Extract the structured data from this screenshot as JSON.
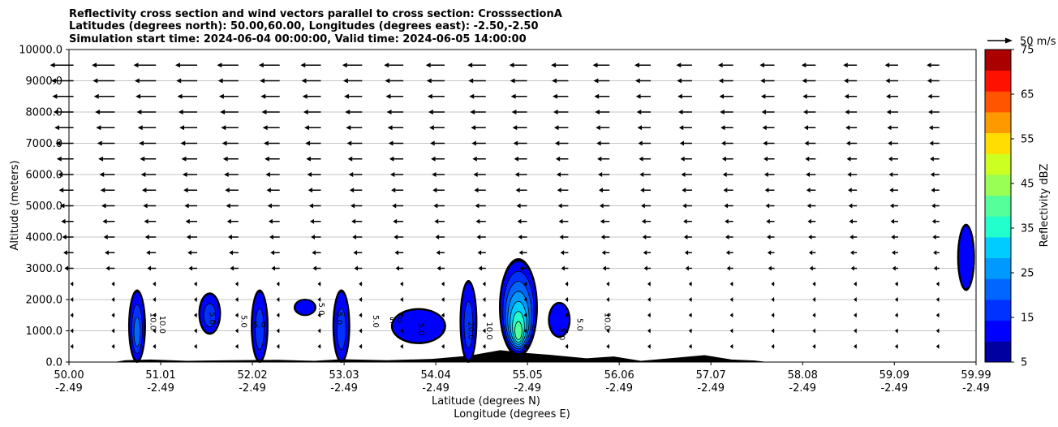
{
  "chart_data": {
    "type": "contour",
    "title_lines": [
      "Reflectivity cross section and wind vectors parallel to cross section: CrosssectionA",
      "Latitudes (degrees north): 50.00,60.00, Longitudes (degrees east): -2.50,-2.50",
      "Simulation start time: 2024-06-04 00:00:00, Valid time: 2024-06-05 14:00:00"
    ],
    "xlabel_lat": "Latitude (degrees N)",
    "xlabel_lon": "Longitude (degrees E)",
    "ylabel": "Altitude (meters)",
    "x_ticks_lat": [
      "50.00",
      "51.01",
      "52.02",
      "53.03",
      "54.04",
      "55.05",
      "56.06",
      "57.07",
      "58.08",
      "59.09",
      "59.99"
    ],
    "x_ticks_lon": [
      "-2.49",
      "-2.49",
      "-2.49",
      "-2.49",
      "-2.49",
      "-2.49",
      "-2.49",
      "-2.49",
      "-2.49",
      "-2.49",
      "-2.49"
    ],
    "x_tick_values": [
      50.0,
      51.01,
      52.02,
      53.03,
      54.04,
      55.05,
      56.06,
      57.07,
      58.08,
      59.09,
      59.99
    ],
    "xlim": [
      50.0,
      59.99
    ],
    "ylim": [
      0,
      10000
    ],
    "y_ticks": [
      0,
      1000,
      2000,
      3000,
      4000,
      5000,
      6000,
      7000,
      8000,
      9000,
      10000
    ],
    "y_tick_labels": [
      "0.0",
      "1000.0",
      "2000.0",
      "3000.0",
      "4000.0",
      "5000.0",
      "6000.0",
      "7000.0",
      "8000.0",
      "9000.0",
      "10000.0"
    ],
    "grid": "horizontal",
    "colorbar": {
      "label": "Reflectivity dBZ",
      "levels": [
        5,
        10,
        15,
        20,
        25,
        30,
        35,
        40,
        45,
        50,
        55,
        60,
        65,
        70,
        75
      ],
      "tick_labels": [
        "5",
        "15",
        "25",
        "35",
        "45",
        "55",
        "65",
        "75"
      ],
      "colors": [
        "#0000a0",
        "#0000ff",
        "#0032ff",
        "#0066ff",
        "#0099ff",
        "#00ccff",
        "#22ffcc",
        "#55ff99",
        "#99ff55",
        "#ccff22",
        "#ffdd00",
        "#ff9900",
        "#ff5500",
        "#ff1100",
        "#aa0000"
      ]
    },
    "quiver_key": "50 m/s",
    "wind_vector_levels_m": [
      500,
      1000,
      1500,
      2000,
      2500,
      3000,
      3500,
      4000,
      4500,
      5000,
      5500,
      6000,
      6500,
      7000,
      7500,
      8000,
      8500,
      9000,
      9500
    ],
    "contour_labels": [
      "10.0",
      "10.0",
      "5.0",
      "5.0",
      "5.0",
      "5.0",
      "5.0",
      "5.0",
      "5.0",
      "5.0",
      "20.0",
      "10.0",
      "5.0",
      "5.0",
      "10.0"
    ],
    "reflectivity_cells": [
      {
        "lat": 50.75,
        "z_bottom": 0,
        "z_top": 2300,
        "max_dbz": 20
      },
      {
        "lat": 51.55,
        "z_bottom": 900,
        "z_top": 2200,
        "max_dbz": 15
      },
      {
        "lat": 52.1,
        "z_bottom": 0,
        "z_top": 2300,
        "max_dbz": 15
      },
      {
        "lat": 52.6,
        "z_bottom": 1500,
        "z_top": 2000,
        "max_dbz": 10
      },
      {
        "lat": 53.0,
        "z_bottom": 0,
        "z_top": 2300,
        "max_dbz": 15
      },
      {
        "lat": 53.85,
        "z_bottom": 600,
        "z_top": 1700,
        "max_dbz": 10
      },
      {
        "lat": 54.4,
        "z_bottom": 0,
        "z_top": 2600,
        "max_dbz": 15
      },
      {
        "lat": 54.95,
        "z_bottom": 200,
        "z_top": 3300,
        "max_dbz": 40
      },
      {
        "lat": 55.4,
        "z_bottom": 800,
        "z_top": 1900,
        "max_dbz": 10
      },
      {
        "lat": 59.88,
        "z_bottom": 2300,
        "z_top": 4400,
        "max_dbz": 10
      }
    ]
  }
}
